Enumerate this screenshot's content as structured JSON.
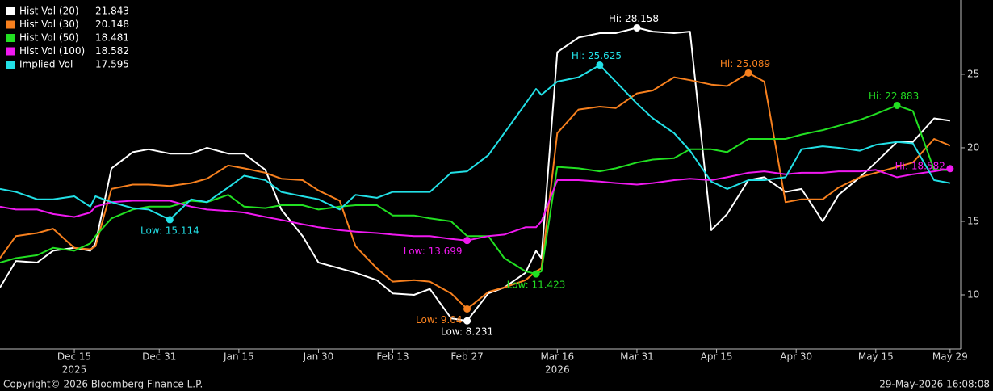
{
  "chart_data": {
    "type": "line",
    "x": [
      "2025-12-01",
      "2025-12-04",
      "2025-12-08",
      "2025-12-11",
      "2025-12-15",
      "2025-12-18",
      "2025-12-19",
      "2025-12-22",
      "2025-12-26",
      "2025-12-29",
      "2026-01-02",
      "2026-01-06",
      "2026-01-09",
      "2026-01-13",
      "2026-01-16",
      "2026-01-20",
      "2026-01-23",
      "2026-01-27",
      "2026-01-30",
      "2026-02-03",
      "2026-02-06",
      "2026-02-10",
      "2026-02-13",
      "2026-02-17",
      "2026-02-20",
      "2026-02-24",
      "2026-02-27",
      "2026-03-03",
      "2026-03-06",
      "2026-03-10",
      "2026-03-12",
      "2026-03-13",
      "2026-03-16",
      "2026-03-20",
      "2026-03-24",
      "2026-03-27",
      "2026-03-31",
      "2026-04-03",
      "2026-04-07",
      "2026-04-10",
      "2026-04-14",
      "2026-04-17",
      "2026-04-21",
      "2026-04-24",
      "2026-04-28",
      "2026-05-01",
      "2026-05-05",
      "2026-05-08",
      "2026-05-12",
      "2026-05-15",
      "2026-05-19",
      "2026-05-22",
      "2026-05-26",
      "2026-05-29"
    ],
    "series": [
      {
        "name": "Hist Vol (20)",
        "last_value": 21.843,
        "color": "#ffffff",
        "values": [
          10.5,
          12.3,
          12.2,
          13.0,
          13.2,
          13.0,
          13.5,
          18.6,
          19.7,
          19.9,
          19.6,
          19.6,
          20.0,
          19.6,
          19.6,
          18.5,
          15.8,
          14.0,
          12.2,
          11.8,
          11.5,
          11.0,
          10.1,
          10.0,
          10.4,
          8.4,
          8.231,
          10.1,
          10.5,
          11.5,
          13.0,
          12.5,
          26.5,
          27.5,
          27.8,
          27.8,
          28.158,
          27.9,
          27.8,
          27.9,
          14.4,
          15.5,
          17.8,
          18.0,
          17.0,
          17.2,
          15.0,
          16.8,
          18.0,
          19.0,
          20.4,
          20.4,
          22.0,
          21.843
        ]
      },
      {
        "name": "Hist Vol (30)",
        "last_value": 20.148,
        "color": "#f7801e",
        "values": [
          12.5,
          14.0,
          14.2,
          14.5,
          13.2,
          13.1,
          13.3,
          17.2,
          17.5,
          17.5,
          17.4,
          17.6,
          17.9,
          18.8,
          18.6,
          18.3,
          17.9,
          17.8,
          17.1,
          16.4,
          13.3,
          11.8,
          10.9,
          11.0,
          10.9,
          10.1,
          9.04,
          10.2,
          10.5,
          11.0,
          11.6,
          11.8,
          21.0,
          22.6,
          22.8,
          22.7,
          23.7,
          23.9,
          24.8,
          24.6,
          24.3,
          24.2,
          25.089,
          24.5,
          16.3,
          16.5,
          16.5,
          17.3,
          18.0,
          18.3,
          18.7,
          19.0,
          20.6,
          20.148
        ]
      },
      {
        "name": "Hist Vol (50)",
        "last_value": 18.481,
        "color": "#22e022",
        "values": [
          12.2,
          12.5,
          12.7,
          13.2,
          13.0,
          13.5,
          14.0,
          15.2,
          15.8,
          16.0,
          16.0,
          16.4,
          16.3,
          16.8,
          16.0,
          15.9,
          16.1,
          16.1,
          15.8,
          16.0,
          16.1,
          16.1,
          15.4,
          15.4,
          15.2,
          15.0,
          14.0,
          14.0,
          12.5,
          11.6,
          11.423,
          11.6,
          18.7,
          18.6,
          18.4,
          18.6,
          19.0,
          19.2,
          19.3,
          19.9,
          19.9,
          19.7,
          20.6,
          20.6,
          20.6,
          20.9,
          21.2,
          21.5,
          21.9,
          22.3,
          22.883,
          22.5,
          18.5,
          18.481
        ]
      },
      {
        "name": "Hist Vol (100)",
        "last_value": 18.582,
        "color": "#f019f0",
        "values": [
          16.0,
          15.8,
          15.8,
          15.5,
          15.3,
          15.6,
          16.0,
          16.3,
          16.4,
          16.4,
          16.4,
          16.0,
          15.8,
          15.7,
          15.6,
          15.3,
          15.1,
          14.8,
          14.6,
          14.4,
          14.3,
          14.2,
          14.1,
          14.0,
          14.0,
          13.8,
          13.699,
          14.0,
          14.1,
          14.6,
          14.6,
          15.0,
          17.8,
          17.8,
          17.7,
          17.6,
          17.5,
          17.6,
          17.8,
          17.9,
          17.8,
          18.0,
          18.3,
          18.4,
          18.2,
          18.3,
          18.3,
          18.4,
          18.4,
          18.5,
          18.0,
          18.2,
          18.4,
          18.582
        ]
      },
      {
        "name": "Implied Vol",
        "last_value": 17.595,
        "color": "#22e0e6",
        "values": [
          17.2,
          17.0,
          16.5,
          16.5,
          16.7,
          16.0,
          16.7,
          16.3,
          15.9,
          15.8,
          15.114,
          16.5,
          16.3,
          17.3,
          18.1,
          17.8,
          17.0,
          16.7,
          16.5,
          15.8,
          16.8,
          16.6,
          17.0,
          17.0,
          17.0,
          18.3,
          18.4,
          19.5,
          21.0,
          23.0,
          24.0,
          23.6,
          24.5,
          24.8,
          25.625,
          24.5,
          23.0,
          22.0,
          21.0,
          19.8,
          17.7,
          17.2,
          17.8,
          17.8,
          18.0,
          19.9,
          20.1,
          20.0,
          19.8,
          20.2,
          20.4,
          20.3,
          17.8,
          17.595
        ]
      }
    ],
    "annotations": [
      {
        "text": "Hi: 28.158",
        "x": "2026-03-31",
        "y": 28.158,
        "color": "#ffffff",
        "placement": "above"
      },
      {
        "text": "Low: 8.231",
        "x": "2026-02-27",
        "y": 8.231,
        "color": "#ffffff",
        "placement": "below"
      },
      {
        "text": "Hi: 25.089",
        "x": "2026-04-21",
        "y": 25.089,
        "color": "#f7801e",
        "placement": "above"
      },
      {
        "text": "Low: 9.04",
        "x": "2026-02-27",
        "y": 9.04,
        "color": "#f7801e",
        "placement": "below-left"
      },
      {
        "text": "Hi: 22.883",
        "x": "2026-05-19",
        "y": 22.883,
        "color": "#22e022",
        "placement": "above"
      },
      {
        "text": "Low: 11.423",
        "x": "2026-03-12",
        "y": 11.423,
        "color": "#22e022",
        "placement": "below"
      },
      {
        "text": "Hi: 18.582",
        "x": "2026-05-29",
        "y": 18.582,
        "color": "#f019f0",
        "placement": "left"
      },
      {
        "text": "Low: 13.699",
        "x": "2026-02-27",
        "y": 13.699,
        "color": "#f019f0",
        "placement": "below-left"
      },
      {
        "text": "Hi: 25.625",
        "x": "2026-03-24",
        "y": 25.625,
        "color": "#22e0e6",
        "placement": "above"
      },
      {
        "text": "Low: 15.114",
        "x": "2026-01-02",
        "y": 15.114,
        "color": "#22e0e6",
        "placement": "below"
      }
    ],
    "xlim": [
      "2025-12-01",
      "2026-05-31"
    ],
    "xticks": [
      {
        "value": "2025-12-15",
        "label": "Dec 15"
      },
      {
        "value": "2025-12-31",
        "label": "Dec 31"
      },
      {
        "value": "2026-01-15",
        "label": "Jan 15"
      },
      {
        "value": "2026-01-30",
        "label": "Jan 30"
      },
      {
        "value": "2026-02-13",
        "label": "Feb 13"
      },
      {
        "value": "2026-02-27",
        "label": "Feb 27"
      },
      {
        "value": "2026-03-16",
        "label": "Mar 16"
      },
      {
        "value": "2026-03-31",
        "label": "Mar 31"
      },
      {
        "value": "2026-04-15",
        "label": "Apr 15"
      },
      {
        "value": "2026-04-30",
        "label": "Apr 30"
      },
      {
        "value": "2026-05-15",
        "label": "May 15"
      },
      {
        "value": "2026-05-29",
        "label": "May 29"
      }
    ],
    "year_labels": [
      {
        "value": "2025-12-15",
        "label": "2025"
      },
      {
        "value": "2026-03-16",
        "label": "2026"
      }
    ],
    "ylim": [
      6.32,
      30.05
    ],
    "yticks": [
      10,
      15,
      20,
      25
    ],
    "grid": false,
    "legend": "top-left",
    "footer_left": "Copyright© 2026 Bloomberg Finance L.P.",
    "footer_right": "29-May-2026 16:08:08"
  }
}
